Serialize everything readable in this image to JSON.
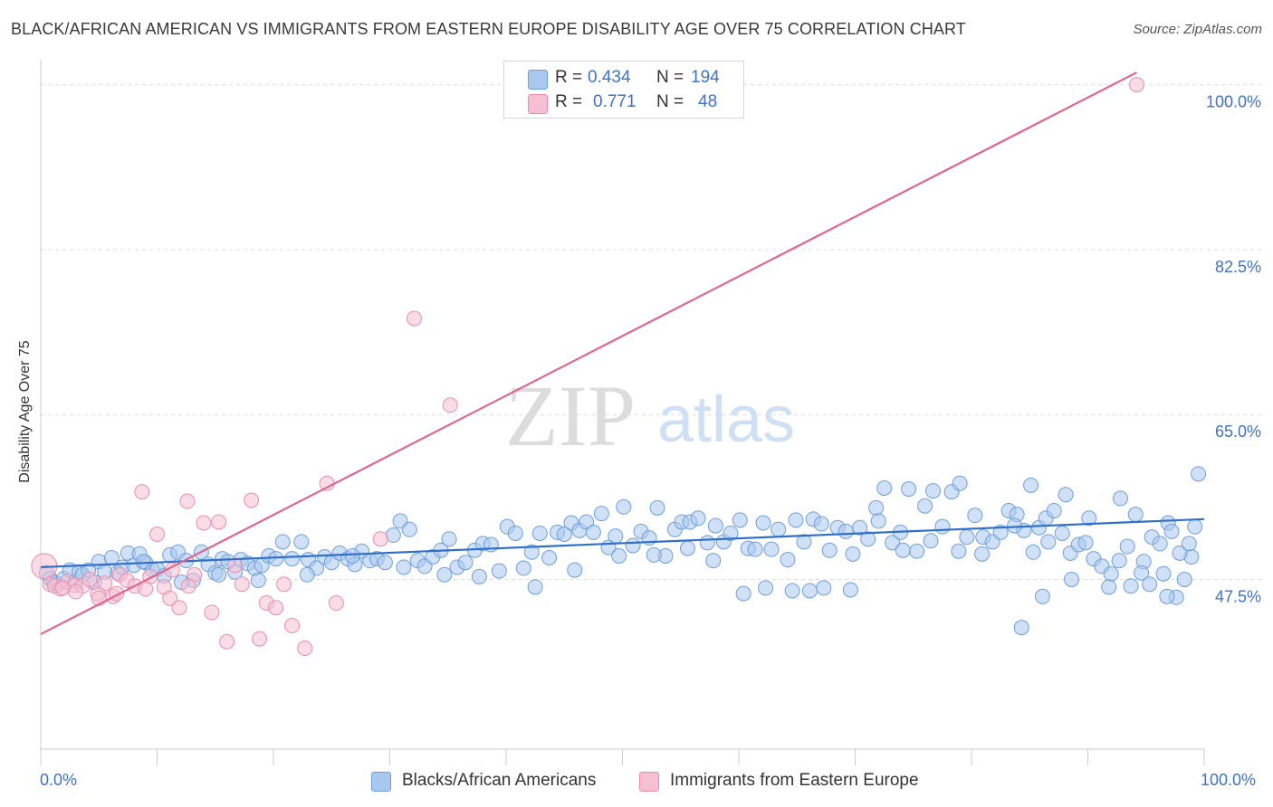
{
  "header": {
    "title": "BLACK/AFRICAN AMERICAN VS IMMIGRANTS FROM EASTERN EUROPE DISABILITY AGE OVER 75 CORRELATION CHART",
    "source": "Source: ZipAtlas.com"
  },
  "legend": {
    "rows": [
      {
        "r_label": "R =",
        "r_value": "0.434",
        "n_label": "N =",
        "n_value": "194"
      },
      {
        "r_label": "R =",
        "r_value": "0.771",
        "n_label": "N =",
        "n_value": "48"
      }
    ]
  },
  "bottom_legend": {
    "items": [
      {
        "label": "Blacks/African Americans"
      },
      {
        "label": "Immigrants from Eastern Europe"
      }
    ]
  },
  "watermark": {
    "zip": "ZIP",
    "atlas": "atlas"
  },
  "colors": {
    "blue_fill": "#a9c8f0",
    "blue_stroke": "#6f9fd8",
    "blue_line": "#2f6fcc",
    "pink_fill": "#f6bfd2",
    "pink_stroke": "#e88fb0",
    "pink_line": "#e0658f",
    "tick_text": "#3f72c8",
    "grid": "#dddddd"
  },
  "chart_data": {
    "type": "scatter",
    "title": "BLACK/AFRICAN AMERICAN VS IMMIGRANTS FROM EASTERN EUROPE DISABILITY AGE OVER 75 CORRELATION CHART",
    "xlabel": "",
    "ylabel": "Disability Age Over 75",
    "xlim": [
      0,
      100
    ],
    "ylim": [
      29.5,
      101.5
    ],
    "x_tick_labels": [
      "0.0%",
      "100.0%"
    ],
    "y_ticks": [
      47.5,
      65.0,
      82.5,
      100.0
    ],
    "y_tick_labels": [
      "47.5%",
      "65.0%",
      "82.5%",
      "100.0%"
    ],
    "grid": true,
    "legend_position": "top-center",
    "series": [
      {
        "name": "Blacks/African Americans",
        "color": "#a9c8f0",
        "R": 0.434,
        "N": 194,
        "trend": [
          [
            0,
            48.8
          ],
          [
            100,
            53.9
          ]
        ],
        "points": [
          [
            0.5,
            48.2
          ],
          [
            0.8,
            47.6
          ],
          [
            1.1,
            47.2
          ],
          [
            1.5,
            47.0
          ],
          [
            2,
            47.6
          ],
          [
            2.5,
            48.5
          ],
          [
            3,
            47.3
          ],
          [
            3.3,
            48.3
          ],
          [
            3.6,
            48.0
          ],
          [
            4.1,
            48.5
          ],
          [
            4.6,
            47.2
          ],
          [
            5,
            49.4
          ],
          [
            5.5,
            48.3
          ],
          [
            6.1,
            49.8
          ],
          [
            6.6,
            48.2
          ],
          [
            7,
            48.8
          ],
          [
            7.5,
            50.3
          ],
          [
            8,
            49.0
          ],
          [
            8.5,
            50.2
          ],
          [
            9,
            49.3
          ],
          [
            9.6,
            48.5
          ],
          [
            10,
            48.6
          ],
          [
            10.6,
            47.9
          ],
          [
            11.1,
            50.1
          ],
          [
            11.8,
            50.4
          ],
          [
            12.5,
            49.5
          ],
          [
            13.1,
            47.4
          ],
          [
            13.8,
            50.4
          ],
          [
            14.4,
            49.1
          ],
          [
            15,
            48.2
          ],
          [
            15.6,
            49.7
          ],
          [
            16.1,
            49.4
          ],
          [
            16.7,
            48.3
          ],
          [
            17.2,
            49.6
          ],
          [
            17.8,
            49.2
          ],
          [
            18.4,
            48.7
          ],
          [
            19,
            49.0
          ],
          [
            19.6,
            50.0
          ],
          [
            20.2,
            49.7
          ],
          [
            20.8,
            51.5
          ],
          [
            21.6,
            49.7
          ],
          [
            22.4,
            51.5
          ],
          [
            23,
            49.6
          ],
          [
            23.7,
            48.7
          ],
          [
            24.4,
            49.9
          ],
          [
            25,
            49.3
          ],
          [
            25.7,
            50.3
          ],
          [
            26.4,
            49.7
          ],
          [
            27,
            49.1
          ],
          [
            27.6,
            50.5
          ],
          [
            28.3,
            49.5
          ],
          [
            28.9,
            49.7
          ],
          [
            29.6,
            49.3
          ],
          [
            30.3,
            52.2
          ],
          [
            30.9,
            53.7
          ],
          [
            31.7,
            52.8
          ],
          [
            32.4,
            49.5
          ],
          [
            33,
            48.9
          ],
          [
            33.7,
            49.9
          ],
          [
            34.4,
            50.6
          ],
          [
            35.1,
            51.8
          ],
          [
            35.8,
            48.8
          ],
          [
            36.5,
            49.3
          ],
          [
            37.3,
            50.6
          ],
          [
            38,
            51.3
          ],
          [
            38.7,
            51.2
          ],
          [
            39.4,
            48.4
          ],
          [
            40.1,
            53.1
          ],
          [
            40.8,
            52.4
          ],
          [
            41.5,
            48.7
          ],
          [
            42.2,
            50.4
          ],
          [
            42.9,
            52.4
          ],
          [
            43.7,
            49.8
          ],
          [
            44.4,
            52.5
          ],
          [
            45,
            52.3
          ],
          [
            45.6,
            53.5
          ],
          [
            46.3,
            52.7
          ],
          [
            46.9,
            53.6
          ],
          [
            47.5,
            52.5
          ],
          [
            48.2,
            54.5
          ],
          [
            48.8,
            50.9
          ],
          [
            49.4,
            52.1
          ],
          [
            50.1,
            55.2
          ],
          [
            50.9,
            51.1
          ],
          [
            51.6,
            52.6
          ],
          [
            52.3,
            51.9
          ],
          [
            53,
            55.1
          ],
          [
            53.7,
            50.0
          ],
          [
            54.5,
            52.8
          ],
          [
            55.1,
            53.6
          ],
          [
            55.8,
            53.6
          ],
          [
            56.5,
            54.0
          ],
          [
            57.3,
            51.4
          ],
          [
            58,
            53.2
          ],
          [
            58.7,
            51.5
          ],
          [
            59.3,
            52.4
          ],
          [
            60.1,
            53.8
          ],
          [
            60.8,
            50.8
          ],
          [
            61.4,
            50.7
          ],
          [
            62.1,
            53.5
          ],
          [
            62.8,
            50.7
          ],
          [
            63.4,
            52.8
          ],
          [
            64.2,
            49.6
          ],
          [
            64.9,
            53.8
          ],
          [
            65.6,
            51.5
          ],
          [
            66.4,
            53.9
          ],
          [
            67.1,
            53.4
          ],
          [
            67.8,
            50.6
          ],
          [
            68.5,
            53.0
          ],
          [
            69.2,
            52.6
          ],
          [
            69.8,
            50.2
          ],
          [
            70.4,
            53.0
          ],
          [
            71.1,
            51.8
          ],
          [
            71.8,
            55.1
          ],
          [
            72.5,
            57.2
          ],
          [
            73.2,
            51.4
          ],
          [
            73.9,
            52.5
          ],
          [
            74.6,
            57.1
          ],
          [
            75.3,
            50.5
          ],
          [
            76,
            55.3
          ],
          [
            76.7,
            56.9
          ],
          [
            77.5,
            53.1
          ],
          [
            78.3,
            56.8
          ],
          [
            79,
            57.7
          ],
          [
            79.6,
            52.0
          ],
          [
            80.3,
            54.3
          ],
          [
            81,
            52.0
          ],
          [
            81.8,
            51.5
          ],
          [
            82.5,
            52.5
          ],
          [
            83.2,
            54.8
          ],
          [
            83.9,
            54.4
          ],
          [
            84.5,
            52.7
          ],
          [
            85.1,
            57.5
          ],
          [
            85.8,
            53.0
          ],
          [
            86.4,
            54.0
          ],
          [
            87.1,
            54.8
          ],
          [
            87.8,
            52.4
          ],
          [
            88.5,
            50.3
          ],
          [
            89.2,
            51.2
          ],
          [
            89.8,
            51.4
          ],
          [
            90.5,
            49.7
          ],
          [
            91.2,
            48.9
          ],
          [
            92,
            48.1
          ],
          [
            92.7,
            49.5
          ],
          [
            93.4,
            51.0
          ],
          [
            94.1,
            54.4
          ],
          [
            94.8,
            49.4
          ],
          [
            95.5,
            52.0
          ],
          [
            96.2,
            51.3
          ],
          [
            96.9,
            53.5
          ],
          [
            97.6,
            45.6
          ],
          [
            98.3,
            47.5
          ],
          [
            98.9,
            49.9
          ],
          [
            99.5,
            58.7
          ],
          [
            8.8,
            49.4
          ],
          [
            12.1,
            47.2
          ],
          [
            15.3,
            48.0
          ],
          [
            18.7,
            47.4
          ],
          [
            22.9,
            48.0
          ],
          [
            26.8,
            50.0
          ],
          [
            31.2,
            48.8
          ],
          [
            34.7,
            48.0
          ],
          [
            37.7,
            47.8
          ],
          [
            42.5,
            46.7
          ],
          [
            45.9,
            48.5
          ],
          [
            49.7,
            50.0
          ],
          [
            52.7,
            50.1
          ],
          [
            55.6,
            50.8
          ],
          [
            57.8,
            49.5
          ],
          [
            60.4,
            46.0
          ],
          [
            62.3,
            46.6
          ],
          [
            64.6,
            46.3
          ],
          [
            66.1,
            46.3
          ],
          [
            67.3,
            46.6
          ],
          [
            69.6,
            46.4
          ],
          [
            72.0,
            53.7
          ],
          [
            74.1,
            50.6
          ],
          [
            76.5,
            51.6
          ],
          [
            78.9,
            50.5
          ],
          [
            80.9,
            50.2
          ],
          [
            83.7,
            53.2
          ],
          [
            85.3,
            50.4
          ],
          [
            86.6,
            51.5
          ],
          [
            88.1,
            56.5
          ],
          [
            90.1,
            54.0
          ],
          [
            92.8,
            56.1
          ],
          [
            94.6,
            48.2
          ],
          [
            96.5,
            48.1
          ],
          [
            97.9,
            50.3
          ],
          [
            98.7,
            51.3
          ],
          [
            99.2,
            53.1
          ],
          [
            84.3,
            42.4
          ],
          [
            86.1,
            45.7
          ],
          [
            88.6,
            47.5
          ],
          [
            91.8,
            46.7
          ],
          [
            93.7,
            46.8
          ],
          [
            95.3,
            47.0
          ],
          [
            96.8,
            45.7
          ],
          [
            97.2,
            52.6
          ]
        ]
      },
      {
        "name": "Immigrants from Eastern Europe",
        "color": "#f6bfd2",
        "R": 0.771,
        "N": 48,
        "trend": [
          [
            0,
            41.7
          ],
          [
            94.2,
            101.3
          ]
        ],
        "points": [
          [
            0.3,
            48.9
          ],
          [
            0.8,
            47.0
          ],
          [
            1.2,
            46.8
          ],
          [
            1.7,
            46.5
          ],
          [
            2.3,
            47.3
          ],
          [
            2.9,
            46.9
          ],
          [
            3.6,
            46.8
          ],
          [
            4.2,
            47.5
          ],
          [
            4.9,
            46.0
          ],
          [
            5.5,
            47.1
          ],
          [
            6.2,
            45.7
          ],
          [
            6.8,
            48.0
          ],
          [
            7.4,
            47.4
          ],
          [
            8.1,
            46.8
          ],
          [
            8.7,
            56.8
          ],
          [
            9.4,
            47.8
          ],
          [
            10.0,
            52.3
          ],
          [
            10.6,
            46.7
          ],
          [
            11.3,
            48.5
          ],
          [
            11.9,
            44.5
          ],
          [
            12.6,
            55.8
          ],
          [
            13.2,
            48.0
          ],
          [
            14.0,
            53.5
          ],
          [
            14.7,
            44.0
          ],
          [
            15.3,
            53.6
          ],
          [
            16.0,
            40.9
          ],
          [
            16.7,
            49.0
          ],
          [
            17.3,
            47.0
          ],
          [
            18.1,
            55.9
          ],
          [
            18.8,
            41.2
          ],
          [
            19.4,
            45.0
          ],
          [
            20.2,
            44.5
          ],
          [
            20.9,
            47.0
          ],
          [
            21.6,
            42.6
          ],
          [
            22.7,
            40.2
          ],
          [
            24.6,
            57.7
          ],
          [
            29.2,
            51.8
          ],
          [
            32.1,
            75.2
          ],
          [
            35.2,
            66.0
          ],
          [
            94.2,
            100.0
          ],
          [
            3.0,
            46.2
          ],
          [
            5.0,
            45.5
          ],
          [
            6.5,
            46.0
          ],
          [
            9.0,
            46.5
          ],
          [
            11.1,
            45.5
          ],
          [
            12.7,
            46.8
          ],
          [
            25.4,
            45.0
          ],
          [
            1.9,
            46.6
          ]
        ]
      }
    ]
  }
}
